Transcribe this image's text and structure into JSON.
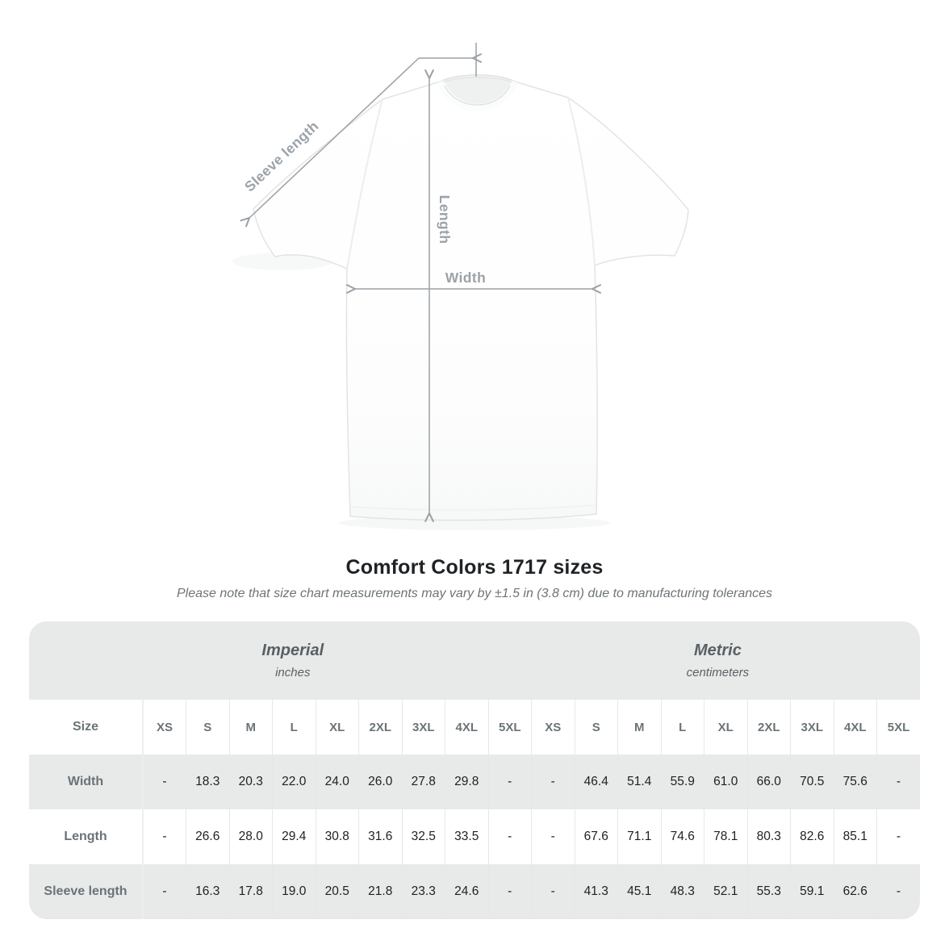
{
  "figure": {
    "sleeve_label": "Sleeve length",
    "length_label": "Length",
    "width_label": "Width"
  },
  "heading": {
    "title": "Comfort Colors 1717 sizes",
    "subtitle": "Please note that size chart measurements may vary by ±1.5 in (3.8 cm) due to manufacturing tolerances"
  },
  "table": {
    "groups": [
      {
        "label": "Imperial",
        "unit": "inches"
      },
      {
        "label": "Metric",
        "unit": "centimeters"
      }
    ],
    "size_header": "Size",
    "sizes": [
      "XS",
      "S",
      "M",
      "L",
      "XL",
      "2XL",
      "3XL",
      "4XL",
      "5XL"
    ],
    "rows": [
      {
        "label": "Width",
        "imperial": [
          "-",
          "18.3",
          "20.3",
          "22.0",
          "24.0",
          "26.0",
          "27.8",
          "29.8",
          "-"
        ],
        "metric": [
          "-",
          "46.4",
          "51.4",
          "55.9",
          "61.0",
          "66.0",
          "70.5",
          "75.6",
          "-"
        ]
      },
      {
        "label": "Length",
        "imperial": [
          "-",
          "26.6",
          "28.0",
          "29.4",
          "30.8",
          "31.6",
          "32.5",
          "33.5",
          "-"
        ],
        "metric": [
          "-",
          "67.6",
          "71.1",
          "74.6",
          "78.1",
          "80.3",
          "82.6",
          "85.1",
          "-"
        ]
      },
      {
        "label": "Sleeve length",
        "imperial": [
          "-",
          "16.3",
          "17.8",
          "19.0",
          "20.5",
          "21.8",
          "23.3",
          "24.6",
          "-"
        ],
        "metric": [
          "-",
          "41.3",
          "45.1",
          "48.3",
          "52.1",
          "55.3",
          "59.1",
          "62.6",
          "-"
        ]
      }
    ]
  },
  "chart_data": {
    "type": "table",
    "title": "Comfort Colors 1717 sizes",
    "subtitle": "Please note that size chart measurements may vary by ±1.5 in (3.8 cm) due to manufacturing tolerances",
    "column_groups": [
      {
        "label": "Imperial",
        "unit": "inches",
        "columns": [
          "XS",
          "S",
          "M",
          "L",
          "XL",
          "2XL",
          "3XL",
          "4XL",
          "5XL"
        ]
      },
      {
        "label": "Metric",
        "unit": "centimeters",
        "columns": [
          "XS",
          "S",
          "M",
          "L",
          "XL",
          "2XL",
          "3XL",
          "4XL",
          "5XL"
        ]
      }
    ],
    "rows": [
      {
        "measurement": "Width",
        "imperial_in": [
          null,
          18.3,
          20.3,
          22.0,
          24.0,
          26.0,
          27.8,
          29.8,
          null
        ],
        "metric_cm": [
          null,
          46.4,
          51.4,
          55.9,
          61.0,
          66.0,
          70.5,
          75.6,
          null
        ]
      },
      {
        "measurement": "Length",
        "imperial_in": [
          null,
          26.6,
          28.0,
          29.4,
          30.8,
          31.6,
          32.5,
          33.5,
          null
        ],
        "metric_cm": [
          null,
          67.6,
          71.1,
          74.6,
          78.1,
          80.3,
          82.6,
          85.1,
          null
        ]
      },
      {
        "measurement": "Sleeve length",
        "imperial_in": [
          null,
          16.3,
          17.8,
          19.0,
          20.5,
          21.8,
          23.3,
          24.6,
          null
        ],
        "metric_cm": [
          null,
          41.3,
          45.1,
          48.3,
          52.1,
          55.3,
          59.1,
          62.6,
          null
        ]
      }
    ],
    "diagram_annotations": [
      "Sleeve length",
      "Length",
      "Width"
    ]
  },
  "colors": {
    "table_gray": "#e8e9e9",
    "label_text": "#6b7377",
    "value_text": "#1e2021",
    "measure_line": "#9aa1a7",
    "title_text": "#202325",
    "subtitle_text": "#6e7478"
  }
}
